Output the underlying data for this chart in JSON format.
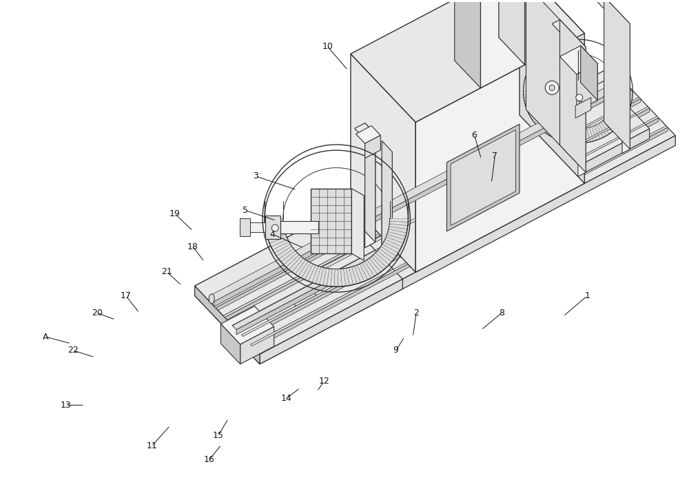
{
  "bg_color": "#ffffff",
  "lc": "#303030",
  "fl": "#f2f2f2",
  "fm": "#dedede",
  "fd": "#c8c8c8",
  "fs": "#e8e8e8",
  "figsize": [
    10.0,
    7.29
  ],
  "dpi": 100
}
